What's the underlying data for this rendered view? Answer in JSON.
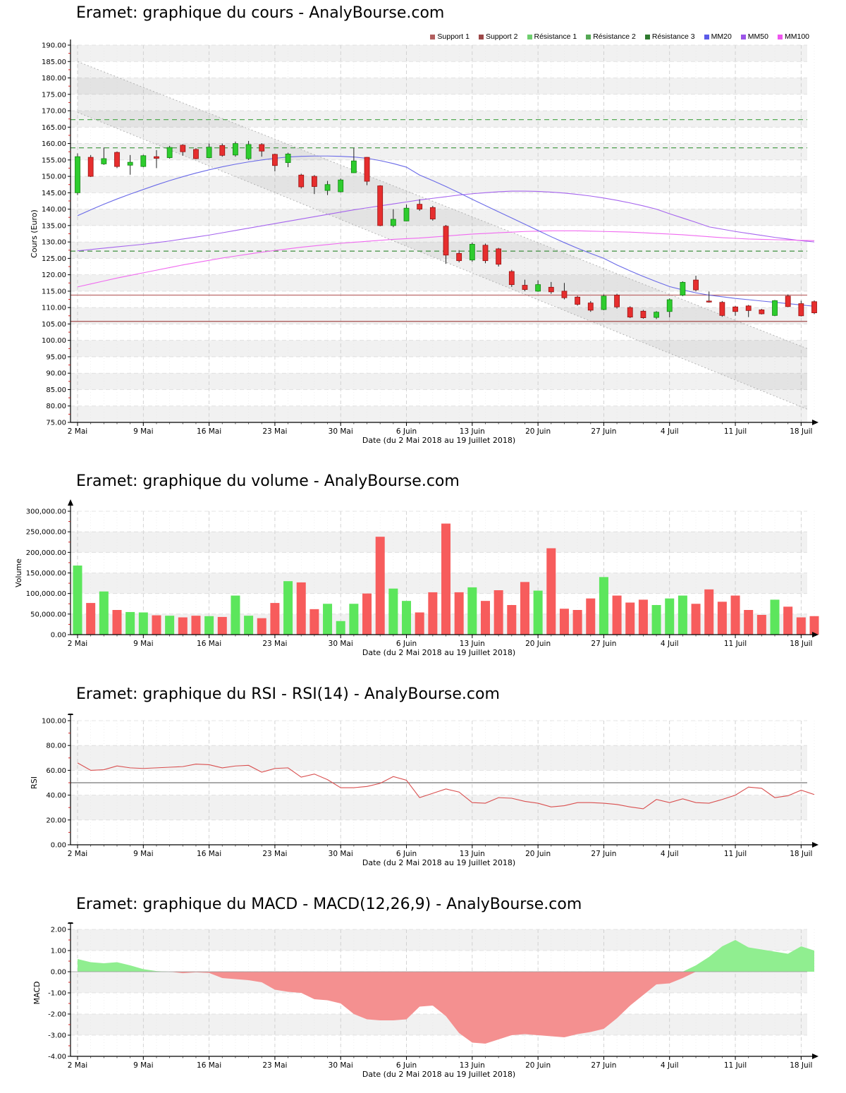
{
  "page": {
    "background": "#ffffff",
    "source_site": "AnalyBourse.com"
  },
  "axis": {
    "xlabel": "Date (du 2 Mai 2018 au 19 Juillet 2018)",
    "xticks": [
      "2 Mai",
      "9 Mai",
      "16 Mai",
      "23 Mai",
      "30 Mai",
      "6 Juin",
      "13 Juin",
      "20 Juin",
      "27 Juin",
      "4 Juil",
      "11 Juil",
      "18 Juil"
    ]
  },
  "legend": [
    {
      "label": "Support 1",
      "color": "#b25f5f"
    },
    {
      "label": "Support 2",
      "color": "#9c4848"
    },
    {
      "label": "Résistance 1",
      "color": "#6fcf6f"
    },
    {
      "label": "Résistance 2",
      "color": "#55a855"
    },
    {
      "label": "Résistance 3",
      "color": "#2f7a2f"
    },
    {
      "label": "MM20",
      "color": "#5b5be8"
    },
    {
      "label": "MM50",
      "color": "#9b55e8"
    },
    {
      "label": "MM100",
      "color": "#ef55ef"
    }
  ],
  "chart_data": {
    "price": {
      "type": "candlestick",
      "title": "Eramet: graphique du cours - AnalyBourse.com",
      "ylabel": "Cours (Euro)",
      "ylim": [
        75,
        190
      ],
      "ystep": 5,
      "grid": true,
      "legend_position": "top-right",
      "candles": [
        [
          145.0,
          157.0,
          144.3,
          156.0
        ],
        [
          155.8,
          156.5,
          149.8,
          150.0
        ],
        [
          153.8,
          158.8,
          153.5,
          155.4
        ],
        [
          157.3,
          157.6,
          152.5,
          153.0
        ],
        [
          153.4,
          156.5,
          150.5,
          154.3
        ],
        [
          153.0,
          156.6,
          152.8,
          156.3
        ],
        [
          156.0,
          158.0,
          152.5,
          155.5
        ],
        [
          155.7,
          159.3,
          155.4,
          158.8
        ],
        [
          159.5,
          159.8,
          156.3,
          157.5
        ],
        [
          158.2,
          158.6,
          155.2,
          155.4
        ],
        [
          155.7,
          160.0,
          155.5,
          158.9
        ],
        [
          159.4,
          160.0,
          156.0,
          156.4
        ],
        [
          156.5,
          160.6,
          156.0,
          160.0
        ],
        [
          155.4,
          160.8,
          155.0,
          159.7
        ],
        [
          159.7,
          160.1,
          156.0,
          157.7
        ],
        [
          156.7,
          156.9,
          151.5,
          153.3
        ],
        [
          154.2,
          157.2,
          152.8,
          156.8
        ],
        [
          150.4,
          150.8,
          146.3,
          146.8
        ],
        [
          150.0,
          150.4,
          144.6,
          146.9
        ],
        [
          145.7,
          148.6,
          144.3,
          147.5
        ],
        [
          145.3,
          149.3,
          145.1,
          148.9
        ],
        [
          151.1,
          158.6,
          151.0,
          154.7
        ],
        [
          155.8,
          155.9,
          147.3,
          148.5
        ],
        [
          147.1,
          147.3,
          134.8,
          135.0
        ],
        [
          135.0,
          140.0,
          134.5,
          136.9
        ],
        [
          136.4,
          141.4,
          136.3,
          140.3
        ],
        [
          141.5,
          143.0,
          139.5,
          140.0
        ],
        [
          140.5,
          141.0,
          136.5,
          137.0
        ],
        [
          134.8,
          135.2,
          123.3,
          126.0
        ],
        [
          126.5,
          127.5,
          123.8,
          124.3
        ],
        [
          124.5,
          129.8,
          124.0,
          129.3
        ],
        [
          129.0,
          129.5,
          123.5,
          124.3
        ],
        [
          127.9,
          128.2,
          122.5,
          123.2
        ],
        [
          121.0,
          121.5,
          116.3,
          117.0
        ],
        [
          116.8,
          118.5,
          115.0,
          115.5
        ],
        [
          115.0,
          118.3,
          114.8,
          117.0
        ],
        [
          116.2,
          117.8,
          114.2,
          114.8
        ],
        [
          115.0,
          117.5,
          112.5,
          113.0
        ],
        [
          113.2,
          113.6,
          110.6,
          111.0
        ],
        [
          111.4,
          112.0,
          108.7,
          109.2
        ],
        [
          109.4,
          114.0,
          109.2,
          113.5
        ],
        [
          113.8,
          114.2,
          109.7,
          110.2
        ],
        [
          110.0,
          110.4,
          106.8,
          107.1
        ],
        [
          108.9,
          109.3,
          106.6,
          106.9
        ],
        [
          107.0,
          108.9,
          106.5,
          108.6
        ],
        [
          108.8,
          112.8,
          107.0,
          112.4
        ],
        [
          113.8,
          118.0,
          113.5,
          117.7
        ],
        [
          118.4,
          119.7,
          114.9,
          115.4
        ],
        [
          112.0,
          114.9,
          111.5,
          111.9
        ],
        [
          111.6,
          112.0,
          107.2,
          107.6
        ],
        [
          110.2,
          110.5,
          107.5,
          108.8
        ],
        [
          110.5,
          110.8,
          107.1,
          109.1
        ],
        [
          109.3,
          109.6,
          107.9,
          108.1
        ],
        [
          107.6,
          112.3,
          107.4,
          112.1
        ],
        [
          113.5,
          114.0,
          110.1,
          110.3
        ],
        [
          111.2,
          112.1,
          107.3,
          107.5
        ],
        [
          111.8,
          112.2,
          108.0,
          108.4
        ]
      ],
      "mm20": [
        138.0,
        139.8,
        141.5,
        143.1,
        144.6,
        146.0,
        147.4,
        148.7,
        149.9,
        151.0,
        152.0,
        152.9,
        153.7,
        154.4,
        155.0,
        155.5,
        155.9,
        156.1,
        156.2,
        156.2,
        156.1,
        155.9,
        155.5,
        154.8,
        153.9,
        152.8,
        150.4,
        148.7,
        146.9,
        145.0,
        143.0,
        141.1,
        139.2,
        137.3,
        135.4,
        133.5,
        131.6,
        129.8,
        128.1,
        126.5,
        125.0,
        123.0,
        121.2,
        119.5,
        117.9,
        116.4,
        115.4,
        114.5,
        113.8,
        113.3,
        112.8,
        112.4,
        112.0,
        111.6,
        111.2,
        110.8,
        110.4
      ],
      "mm50": [
        127.3,
        127.7,
        128.1,
        128.5,
        128.9,
        129.3,
        129.8,
        130.3,
        130.9,
        131.5,
        132.1,
        132.8,
        133.5,
        134.2,
        134.9,
        135.6,
        136.3,
        137.0,
        137.7,
        138.4,
        139.1,
        139.8,
        140.4,
        141.0,
        141.6,
        142.2,
        142.8,
        143.3,
        143.8,
        144.3,
        144.7,
        145.0,
        145.3,
        145.5,
        145.5,
        145.4,
        145.2,
        144.9,
        144.5,
        144.0,
        143.4,
        142.7,
        141.9,
        141.0,
        140.0,
        138.6,
        137.3,
        136.0,
        134.6,
        133.9,
        133.2,
        132.6,
        132.0,
        131.4,
        130.9,
        130.4,
        130.0
      ],
      "mm100": [
        116.3,
        117.2,
        118.1,
        119.0,
        119.8,
        120.6,
        121.4,
        122.2,
        123.0,
        123.7,
        124.4,
        125.1,
        125.7,
        126.3,
        126.9,
        127.4,
        127.9,
        128.4,
        128.8,
        129.2,
        129.6,
        129.9,
        130.2,
        130.5,
        130.8,
        131.0,
        131.2,
        131.5,
        131.8,
        132.1,
        132.4,
        132.6,
        132.8,
        133.0,
        133.2,
        133.3,
        133.4,
        133.4,
        133.4,
        133.3,
        133.2,
        133.1,
        133.0,
        132.8,
        132.6,
        132.4,
        132.2,
        131.9,
        131.6,
        131.3,
        131.1,
        130.9,
        130.8,
        130.7,
        130.6,
        130.5,
        130.4
      ],
      "supports": [
        113.8,
        105.8
      ],
      "resistances": [
        167.3,
        158.7,
        127.2
      ],
      "channel": {
        "upper": [
          185.0,
          97.5
        ],
        "lower": [
          169.5,
          79.0
        ]
      }
    },
    "volume": {
      "type": "bar",
      "title": "Eramet: graphique du volume - AnalyBourse.com",
      "ylabel": "Volume",
      "ylim": [
        0,
        300000
      ],
      "ystep": 50000,
      "grid": true,
      "values": [
        168000,
        77000,
        105000,
        60000,
        55000,
        54000,
        47000,
        46000,
        42000,
        46000,
        45000,
        43000,
        95000,
        46000,
        40000,
        77000,
        130000,
        127000,
        62000,
        75000,
        33000,
        75000,
        100000,
        238000,
        112000,
        82000,
        54000,
        103000,
        270000,
        103000,
        115000,
        82000,
        108000,
        72000,
        128000,
        107000,
        210000,
        63000,
        60000,
        88000,
        140000,
        95000,
        78000,
        85000,
        72000,
        88000,
        95000,
        75000,
        110000,
        80000,
        95000,
        60000,
        48000,
        85000,
        68000,
        42000,
        45000
      ]
    },
    "rsi": {
      "type": "line",
      "title": "Eramet: graphique du RSI - RSI(14) - AnalyBourse.com",
      "ylabel": "RSI",
      "ylim": [
        0,
        100
      ],
      "ystep": 20,
      "midline": 50,
      "grid": true,
      "values": [
        66,
        60,
        60.5,
        63.5,
        62,
        61.5,
        62,
        62.5,
        63,
        65,
        64.5,
        62,
        63.5,
        64,
        58.5,
        61.5,
        62,
        54.5,
        57,
        52.5,
        46,
        46,
        47,
        49.5,
        55,
        52,
        38,
        41.5,
        45,
        42.5,
        34,
        33.5,
        38,
        37.5,
        35,
        33.5,
        30.5,
        31.5,
        34,
        34,
        33.5,
        32.5,
        30.5,
        29,
        36.5,
        34,
        37,
        34,
        33.5,
        36.5,
        40,
        46.5,
        45.5,
        38,
        39.5,
        44,
        40.5
      ]
    },
    "macd": {
      "type": "area",
      "title": "Eramet: graphique du MACD - MACD(12,26,9) - AnalyBourse.com",
      "ylabel": "MACD",
      "ylim": [
        -4,
        2
      ],
      "ystep": 1,
      "grid": true,
      "values": [
        0.6,
        0.45,
        0.4,
        0.45,
        0.3,
        0.12,
        0.03,
        0.0,
        -0.07,
        -0.03,
        -0.06,
        -0.3,
        -0.35,
        -0.4,
        -0.5,
        -0.85,
        -0.95,
        -1.0,
        -1.3,
        -1.35,
        -1.5,
        -2.0,
        -2.25,
        -2.3,
        -2.3,
        -2.25,
        -1.65,
        -1.6,
        -2.1,
        -2.9,
        -3.35,
        -3.4,
        -3.2,
        -3.0,
        -2.95,
        -3.0,
        -3.05,
        -3.1,
        -2.95,
        -2.85,
        -2.7,
        -2.2,
        -1.6,
        -1.1,
        -0.6,
        -0.55,
        -0.3,
        0.3,
        0.7,
        1.2,
        1.5,
        1.15,
        1.05,
        0.95,
        0.85,
        1.2,
        1.0
      ]
    }
  },
  "colors": {
    "candle_up": "#2ecc2e",
    "candle_up_stroke": "#118811",
    "candle_down": "#e62e2e",
    "candle_down_stroke": "#991111",
    "bar_up": "#5ce65c",
    "bar_down": "#f75c5c",
    "macd_pos": "#90ee90",
    "macd_neg": "#f49090",
    "rsi_line": "#d94f4f",
    "mm20": "#6a6ae8",
    "mm50": "#a665ee",
    "mm100": "#f06af0",
    "support1": "#bc6a6a",
    "support2": "#a34d4d",
    "resistance": [
      "#55ab55",
      "#4d9e4d",
      "#3f8f3f"
    ],
    "channel": "#b4b4b4",
    "stripe": "#f1f1f1",
    "grid_week": "#c9c9c9",
    "grid_day": "#e4e4e4",
    "grid_h": "#dcdcdc",
    "minor_tick": "#cc2222",
    "midline_rsi": "#777777"
  }
}
